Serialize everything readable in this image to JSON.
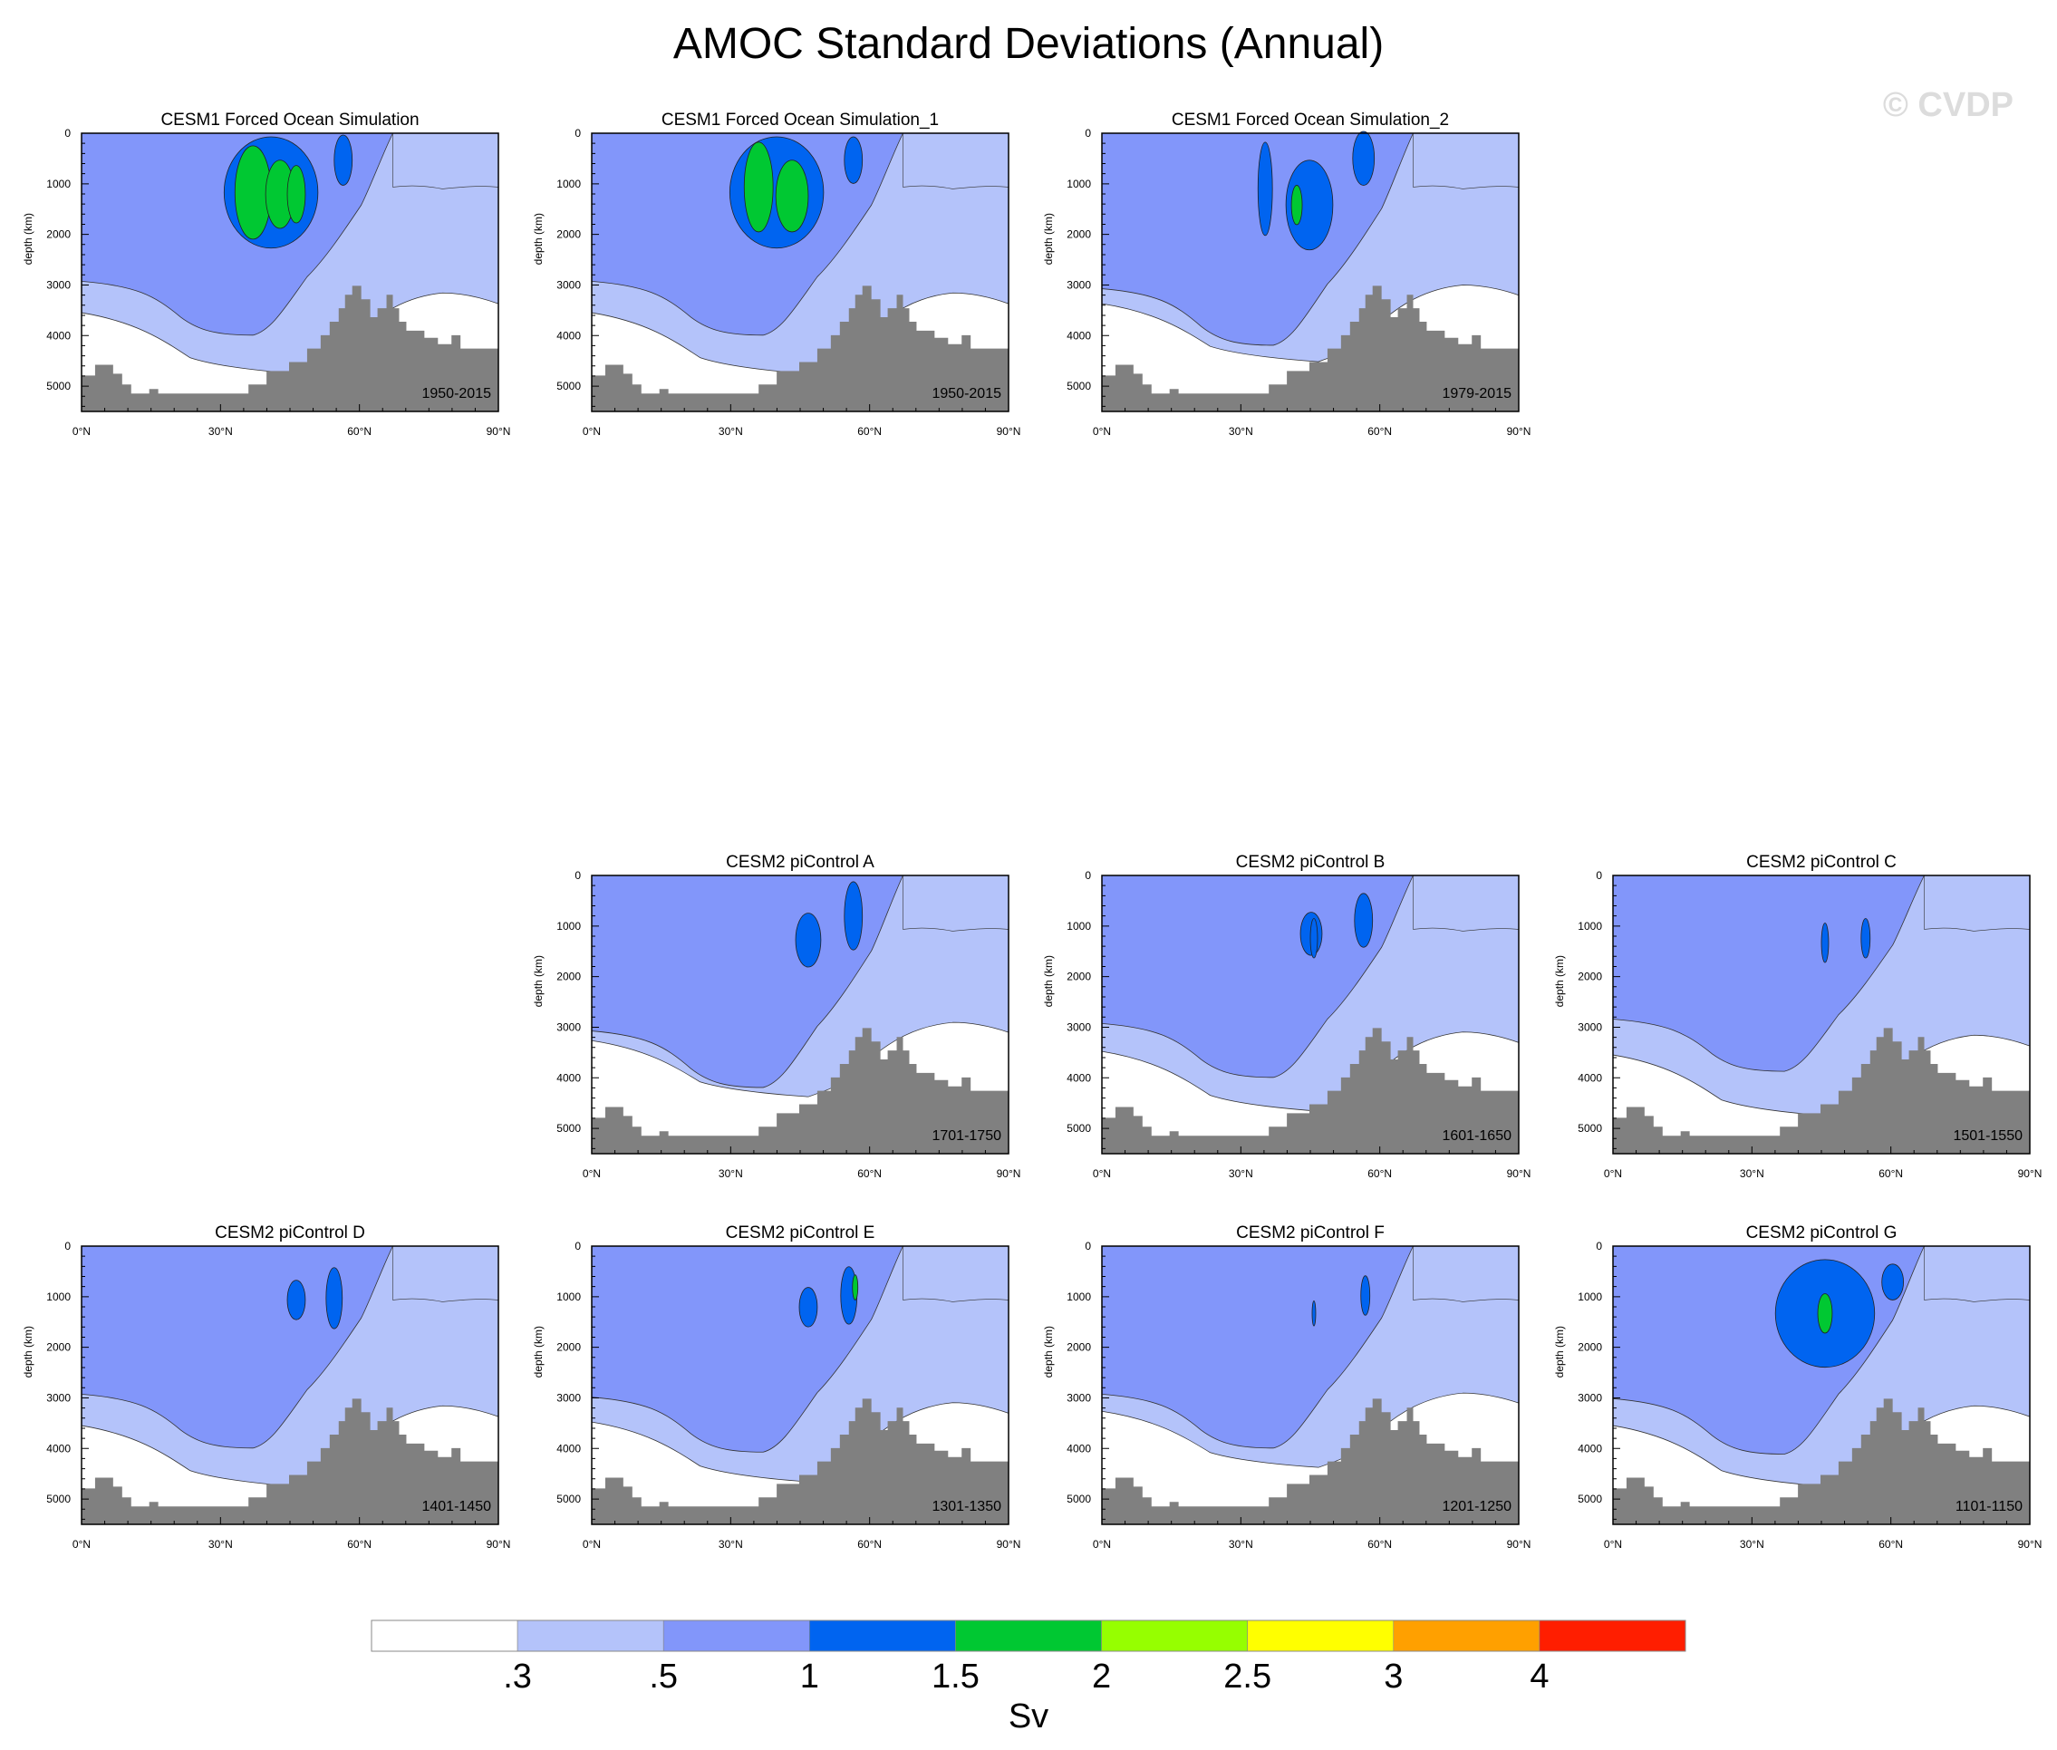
{
  "title": "AMOC Standard Deviations (Annual)",
  "watermark": "© CVDP",
  "colors": {
    "levels": [
      "#ffffff",
      "#b4c3fa",
      "#8296fa",
      "#0064f0",
      "#00c832",
      "#96ff00",
      "#ffff00",
      "#ffa000",
      "#ff1e00"
    ],
    "topography": "#808080"
  },
  "chart_data": [
    {
      "type": "heatmap",
      "title": "CESM1 Forced Ocean Simulation",
      "period": "1950-2015"
    },
    {
      "type": "heatmap",
      "title": "CESM1 Forced Ocean Simulation_1",
      "period": "1950-2015"
    },
    {
      "type": "heatmap",
      "title": "CESM1 Forced Ocean Simulation_2",
      "period": "1979-2015"
    },
    {
      "type": "heatmap",
      "title": "CESM2 piControl A",
      "period": "1701-1750"
    },
    {
      "type": "heatmap",
      "title": "CESM2 piControl B",
      "period": "1601-1650"
    },
    {
      "type": "heatmap",
      "title": "CESM2 piControl C",
      "period": "1501-1550"
    },
    {
      "type": "heatmap",
      "title": "CESM2 piControl D",
      "period": "1401-1450"
    },
    {
      "type": "heatmap",
      "title": "CESM2 piControl E",
      "period": "1301-1350"
    },
    {
      "type": "heatmap",
      "title": "CESM2 piControl F",
      "period": "1201-1250"
    },
    {
      "type": "heatmap",
      "title": "CESM2 piControl G",
      "period": "1101-1150"
    }
  ],
  "axes": {
    "ylabel": "depth (km)",
    "yticks": [
      0,
      1000,
      2000,
      3000,
      4000,
      5000
    ],
    "ylim": [
      0,
      5500
    ],
    "xticks": [
      "0°N",
      "30°N",
      "60°N",
      "90°N"
    ],
    "xlim": [
      0,
      90
    ]
  },
  "colorbar": {
    "labels": [
      ".3",
      ".5",
      "1",
      "1.5",
      "2",
      "2.5",
      "3",
      "4"
    ],
    "units": "Sv"
  }
}
